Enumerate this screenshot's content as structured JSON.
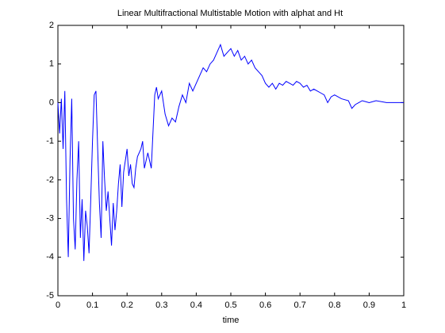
{
  "chart_data": {
    "type": "line",
    "title": "Linear Multifractional Multistable Motion with alphat and Ht",
    "x_label": "time",
    "x": [
      0,
      0.005,
      0.01,
      0.015,
      0.02,
      0.025,
      0.03,
      0.035,
      0.04,
      0.045,
      0.05,
      0.055,
      0.06,
      0.065,
      0.07,
      0.075,
      0.08,
      0.085,
      0.09,
      0.095,
      0.1,
      0.105,
      0.11,
      0.115,
      0.12,
      0.125,
      0.13,
      0.135,
      0.14,
      0.145,
      0.15,
      0.155,
      0.16,
      0.165,
      0.17,
      0.175,
      0.18,
      0.185,
      0.19,
      0.2,
      0.205,
      0.21,
      0.215,
      0.22,
      0.225,
      0.23,
      0.24,
      0.245,
      0.25,
      0.26,
      0.27,
      0.28,
      0.285,
      0.29,
      0.3,
      0.31,
      0.32,
      0.33,
      0.34,
      0.35,
      0.36,
      0.37,
      0.38,
      0.39,
      0.4,
      0.41,
      0.42,
      0.43,
      0.44,
      0.45,
      0.46,
      0.47,
      0.48,
      0.49,
      0.5,
      0.51,
      0.52,
      0.53,
      0.54,
      0.55,
      0.56,
      0.57,
      0.58,
      0.59,
      0.6,
      0.61,
      0.62,
      0.63,
      0.64,
      0.65,
      0.66,
      0.67,
      0.68,
      0.69,
      0.7,
      0.71,
      0.72,
      0.73,
      0.74,
      0.75,
      0.76,
      0.77,
      0.78,
      0.79,
      0.8,
      0.82,
      0.84,
      0.85,
      0.86,
      0.87,
      0.88,
      0.9,
      0.92,
      0.95,
      0.98,
      1.0
    ],
    "series": [
      {
        "color": "#0000ff",
        "values": [
          0,
          -0.8,
          0.1,
          -1.2,
          0.3,
          -2.5,
          -4.0,
          -1.5,
          0.1,
          -3.0,
          -3.8,
          -2.0,
          -1.0,
          -3.5,
          -2.5,
          -4.1,
          -2.8,
          -3.2,
          -3.9,
          -2.5,
          -1.0,
          0.2,
          0.3,
          -1.2,
          -2.6,
          -3.5,
          -1.0,
          -2.0,
          -2.8,
          -2.3,
          -3.0,
          -3.7,
          -2.6,
          -3.3,
          -2.8,
          -2.1,
          -1.6,
          -2.7,
          -1.8,
          -1.2,
          -1.9,
          -1.6,
          -2.1,
          -2.2,
          -1.7,
          -1.4,
          -1.2,
          -1.0,
          -1.7,
          -1.3,
          -1.7,
          0.2,
          0.4,
          0.1,
          0.3,
          -0.3,
          -0.6,
          -0.4,
          -0.5,
          -0.1,
          0.2,
          0.0,
          0.5,
          0.3,
          0.5,
          0.7,
          0.9,
          0.8,
          1.0,
          1.1,
          1.3,
          1.5,
          1.2,
          1.3,
          1.4,
          1.2,
          1.35,
          1.1,
          1.2,
          1.0,
          1.1,
          0.9,
          0.8,
          0.7,
          0.5,
          0.4,
          0.5,
          0.35,
          0.5,
          0.45,
          0.55,
          0.5,
          0.45,
          0.55,
          0.5,
          0.4,
          0.45,
          0.3,
          0.35,
          0.3,
          0.25,
          0.2,
          0.0,
          0.15,
          0.2,
          0.1,
          0.05,
          -0.15,
          -0.05,
          0.0,
          0.05,
          0.0,
          0.05,
          0.0,
          0.0,
          0.0
        ]
      }
    ],
    "xlim": [
      0,
      1
    ],
    "xticks": [
      0,
      0.1,
      0.2,
      0.3,
      0.4,
      0.5,
      0.6,
      0.7,
      0.8,
      0.9,
      1
    ],
    "ylim": [
      -5,
      2
    ],
    "yticks": [
      -5,
      -4,
      -3,
      -2,
      -1,
      0,
      1,
      2
    ],
    "grid": false
  }
}
